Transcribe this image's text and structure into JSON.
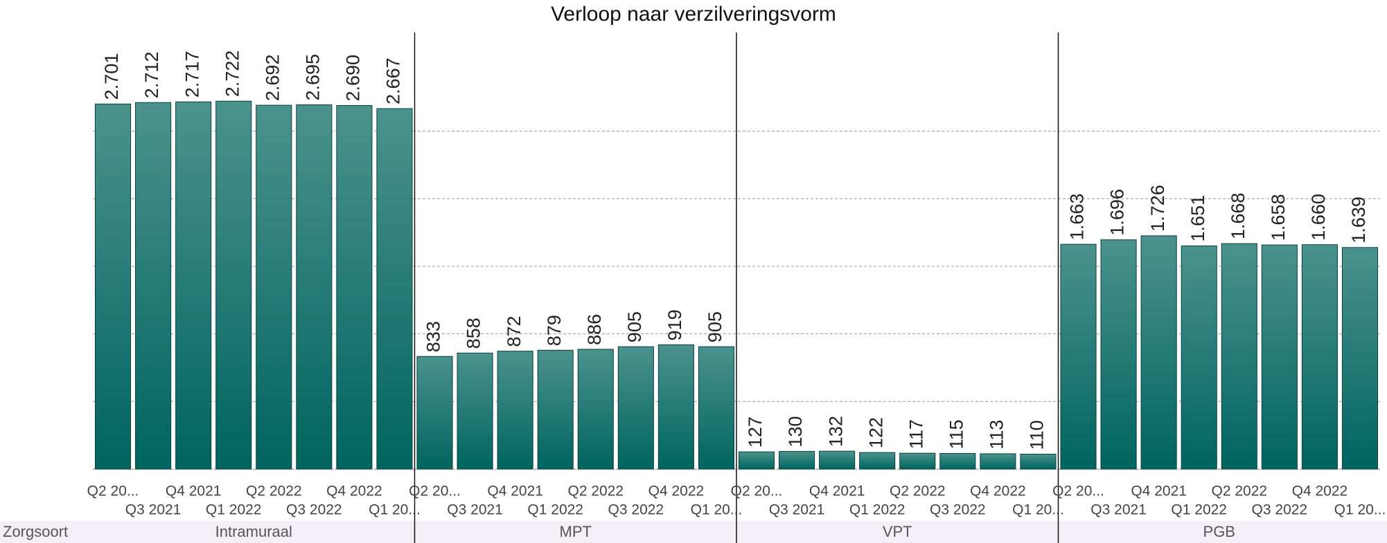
{
  "chart_data": {
    "type": "bar",
    "title": "Verloop naar verzilveringsvorm",
    "categories": [
      "Q2 20...",
      "Q3 2021",
      "Q4 2021",
      "Q1 2022",
      "Q2 2022",
      "Q3 2022",
      "Q4 2022",
      "Q1 20..."
    ],
    "row_header": "Zorgsoort",
    "panels": [
      {
        "name": "Intramuraal",
        "values": [
          2701,
          2712,
          2717,
          2722,
          2692,
          2695,
          2690,
          2667
        ],
        "value_labels": [
          "2.701",
          "2.712",
          "2.717",
          "2.722",
          "2.692",
          "2.695",
          "2.690",
          "2.667"
        ]
      },
      {
        "name": "MPT",
        "values": [
          833,
          858,
          872,
          879,
          886,
          905,
          919,
          905
        ],
        "value_labels": [
          "833",
          "858",
          "872",
          "879",
          "886",
          "905",
          "919",
          "905"
        ]
      },
      {
        "name": "VPT",
        "values": [
          127,
          130,
          132,
          122,
          117,
          115,
          113,
          110
        ],
        "value_labels": [
          "127",
          "130",
          "132",
          "122",
          "117",
          "115",
          "113",
          "110"
        ]
      },
      {
        "name": "PGB",
        "values": [
          1663,
          1696,
          1726,
          1651,
          1668,
          1658,
          1660,
          1639
        ],
        "value_labels": [
          "1.663",
          "1.696",
          "1.726",
          "1.651",
          "1.668",
          "1.658",
          "1.660",
          "1.639"
        ]
      }
    ],
    "color": "#00645f",
    "ylim": [
      0,
      3230
    ],
    "yticks": [
      0,
      500,
      1000,
      1500,
      2000,
      2500
    ],
    "grid": true
  }
}
